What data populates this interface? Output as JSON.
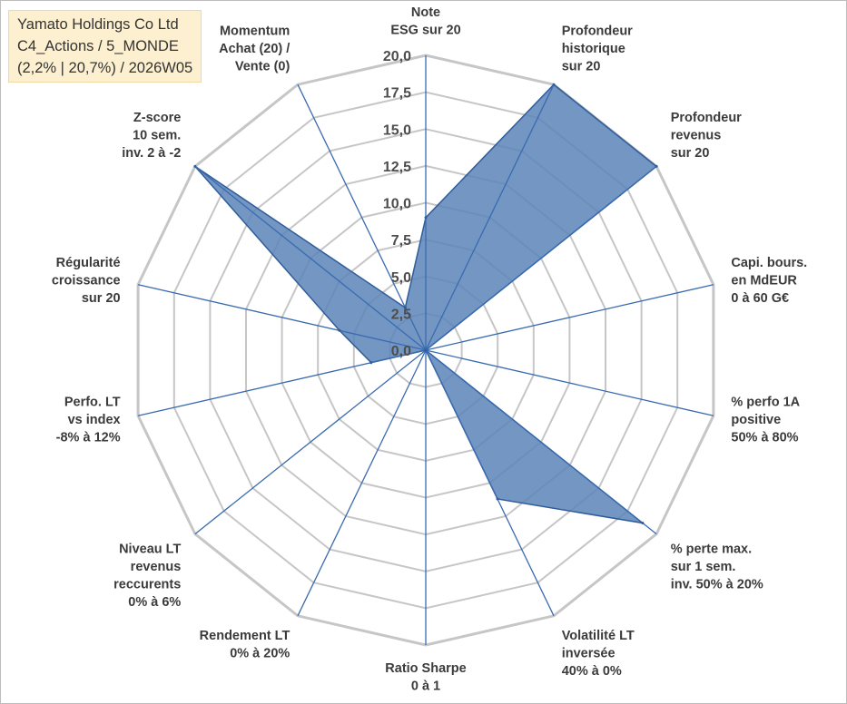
{
  "header": {
    "company": "Yamato Holdings Co Ltd",
    "category": "C4_Actions / 5_MONDE",
    "stats": "(2,2% | 20,7%) / 2026W05"
  },
  "colors": {
    "fill": "#5b84b8",
    "outline": "#2f5d9b",
    "spoke": "#3a6bb0",
    "grid": "#c6c6c6",
    "header_bg": "#fdf0d0"
  },
  "chart_data": {
    "type": "radar",
    "title": "",
    "range": [
      0,
      20
    ],
    "tick_step": 2.5,
    "tick_labels": [
      "0,0",
      "2,5",
      "5,0",
      "7,5",
      "10,0",
      "12,5",
      "15,0",
      "17,5",
      "20,0"
    ],
    "axes": [
      {
        "lines": [
          "Note",
          "ESG sur 20"
        ],
        "value": 9.0
      },
      {
        "lines": [
          "Profondeur",
          "historique",
          "sur 20"
        ],
        "value": 20.0
      },
      {
        "lines": [
          "Profondeur",
          "revenus",
          "sur 20"
        ],
        "value": 20.0
      },
      {
        "lines": [
          "Capi. bours.",
          "en MdEUR",
          "0 à 60 G€"
        ],
        "value": 0.0
      },
      {
        "lines": [
          "% perfo 1A",
          "positive",
          "50% à 80%"
        ],
        "value": 0.0
      },
      {
        "lines": [
          "% perte max.",
          "sur 1 sem.",
          "inv. 50% à 20%"
        ],
        "value": 18.8
      },
      {
        "lines": [
          "Volatilité LT",
          "inversée",
          "40% à 0%"
        ],
        "value": 11.2
      },
      {
        "lines": [
          "Ratio Sharpe",
          "0 à 1"
        ],
        "value": 0.0
      },
      {
        "lines": [
          "Rendement LT",
          "0% à 20%"
        ],
        "value": 0.0
      },
      {
        "lines": [
          "Niveau LT",
          "revenus",
          "reccurents",
          "0% à 6%"
        ],
        "value": 0.0
      },
      {
        "lines": [
          "Perfo. LT",
          "vs index",
          "-8% à 12%"
        ],
        "value": 3.8
      },
      {
        "lines": [
          "Régularité",
          "croissance",
          "sur 20"
        ],
        "value": 6.0
      },
      {
        "lines": [
          "Z-score",
          "10 sem.",
          "inv. 2 à -2"
        ],
        "value": 20.0
      },
      {
        "lines": [
          "Momentum",
          "Achat (20) /",
          "Vente (0)"
        ],
        "value": 3.2
      }
    ]
  }
}
